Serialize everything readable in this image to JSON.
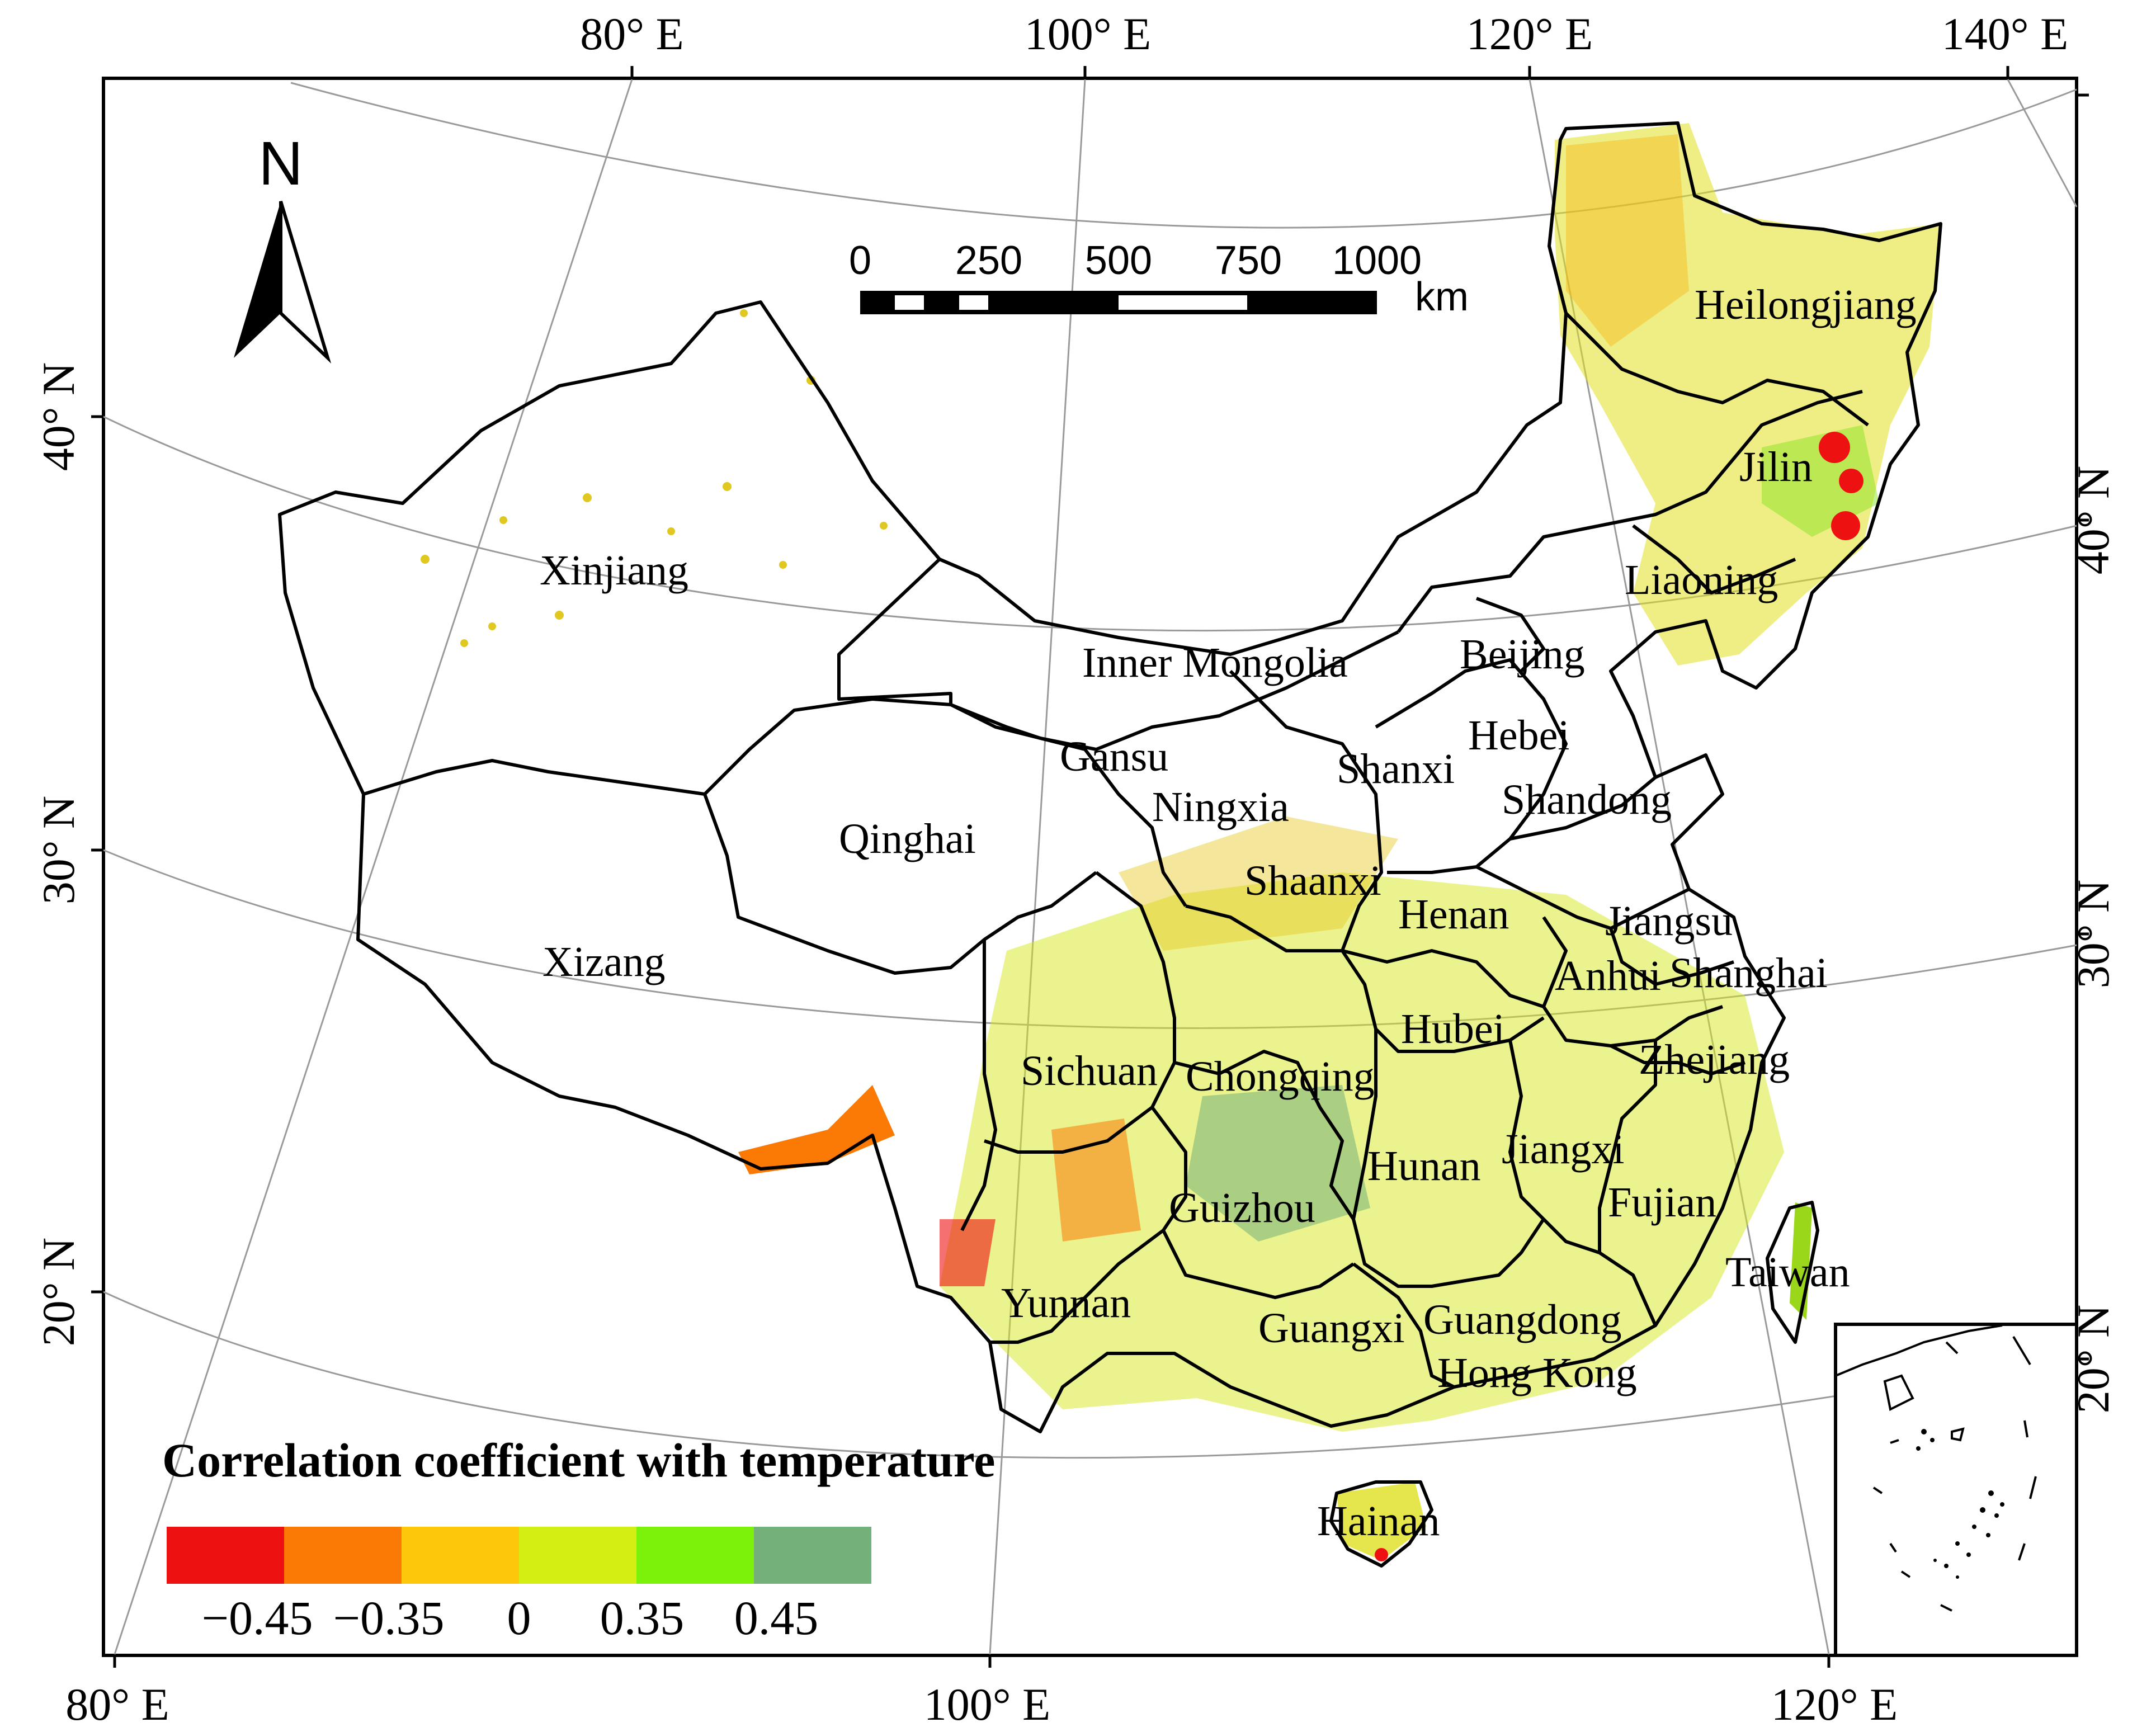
{
  "map": {
    "top_lon_labels": [
      "80° E",
      "100° E",
      "120° E",
      "140° E"
    ],
    "bottom_lon_labels": [
      "80° E",
      "100° E",
      "120° E"
    ],
    "left_lat_labels": [
      "40° N",
      "30° N",
      "20° N"
    ],
    "right_lat_labels": [
      "40° N",
      "30° N",
      "20° N"
    ],
    "north_arrow_label": "N",
    "scale_bar": {
      "ticks": [
        "0",
        "250",
        "500",
        "750",
        "1000"
      ],
      "unit": "km"
    },
    "provinces": [
      "Heilongjiang",
      "Jilin",
      "Liaoning",
      "Xinjiang",
      "Inner Mongolia",
      "Beijing",
      "Hebei",
      "Gansu",
      "Shanxi",
      "Ningxia",
      "Shandong",
      "Qinghai",
      "Shaanxi",
      "Henan",
      "Jiangsu",
      "Xizang",
      "Anhui",
      "Shanghai",
      "Hubei",
      "Sichuan",
      "Chongqing",
      "Zhejiang",
      "Jiangxi",
      "Hunan",
      "Guizhou",
      "Fujian",
      "Taiwan",
      "Yunnan",
      "Guangxi",
      "Guangdong",
      "Hong Kong",
      "Hainan"
    ],
    "legend": {
      "title": "Correlation coefficient with temperature",
      "tick_labels": [
        "−0.45",
        "−0.35",
        "0",
        "0.35",
        "0.45"
      ],
      "colors": [
        "#ee1111",
        "#fb7a06",
        "#fdc80a",
        "#d2ee12",
        "#7cf20a",
        "#74b07a"
      ]
    }
  }
}
